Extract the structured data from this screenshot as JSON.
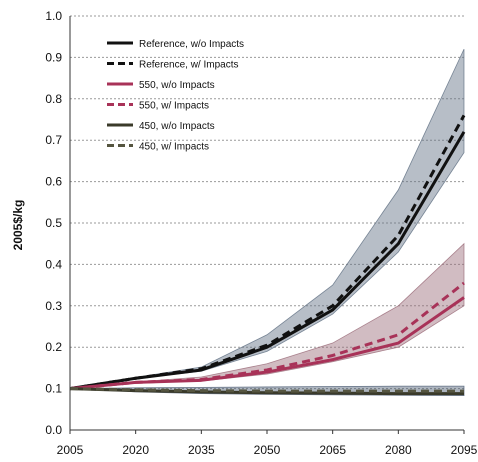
{
  "chart_data": {
    "type": "line",
    "title": "",
    "xlabel": "",
    "ylabel": "2005$/kg",
    "xlim": [
      2005,
      2095
    ],
    "ylim": [
      0.0,
      1.0
    ],
    "x_ticks": [
      "2005",
      "2020",
      "2035",
      "2050",
      "2065",
      "2080",
      "2095"
    ],
    "y_ticks": [
      "0.0",
      "0.1",
      "0.2",
      "0.3",
      "0.4",
      "0.5",
      "0.6",
      "0.7",
      "0.8",
      "0.9",
      "1.0"
    ],
    "grid": "horizontal dashed",
    "legend_position": "top-left",
    "x": [
      2005,
      2020,
      2035,
      2050,
      2065,
      2080,
      2095
    ],
    "series": [
      {
        "name": "Reference, w/o Impacts",
        "color": "#111111",
        "dash": false,
        "values": [
          0.1,
          0.125,
          0.145,
          0.2,
          0.29,
          0.45,
          0.72
        ]
      },
      {
        "name": "Reference, w/ Impacts",
        "color": "#111111",
        "dash": true,
        "values": [
          0.1,
          0.125,
          0.148,
          0.205,
          0.3,
          0.47,
          0.76
        ]
      },
      {
        "name": "550, w/o Impacts",
        "color": "#a83258",
        "dash": false,
        "values": [
          0.1,
          0.115,
          0.12,
          0.14,
          0.17,
          0.21,
          0.32
        ]
      },
      {
        "name": "550, w/ Impacts",
        "color": "#a83258",
        "dash": true,
        "values": [
          0.1,
          0.115,
          0.122,
          0.145,
          0.18,
          0.23,
          0.355
        ]
      },
      {
        "name": "450, w/o Impacts",
        "color": "#3a3a2a",
        "dash": false,
        "values": [
          0.1,
          0.095,
          0.092,
          0.09,
          0.089,
          0.088,
          0.088
        ]
      },
      {
        "name": "450, w/ Impacts",
        "color": "#555540",
        "dash": true,
        "values": [
          0.1,
          0.097,
          0.095,
          0.094,
          0.094,
          0.094,
          0.094
        ]
      }
    ],
    "bands": [
      {
        "name": "Reference range",
        "color": "#5f6f82",
        "lower": [
          0.1,
          0.124,
          0.142,
          0.19,
          0.28,
          0.43,
          0.67
        ],
        "upper": [
          0.1,
          0.127,
          0.152,
          0.23,
          0.35,
          0.58,
          0.92
        ]
      },
      {
        "name": "550 range",
        "color": "#9a6a78",
        "lower": [
          0.1,
          0.114,
          0.118,
          0.135,
          0.165,
          0.2,
          0.3
        ],
        "upper": [
          0.1,
          0.116,
          0.128,
          0.16,
          0.21,
          0.3,
          0.45
        ]
      },
      {
        "name": "450 range",
        "color": "#4a5a72",
        "lower": [
          0.1,
          0.092,
          0.088,
          0.086,
          0.085,
          0.084,
          0.083
        ],
        "upper": [
          0.1,
          0.102,
          0.103,
          0.104,
          0.105,
          0.106,
          0.106
        ]
      }
    ]
  }
}
